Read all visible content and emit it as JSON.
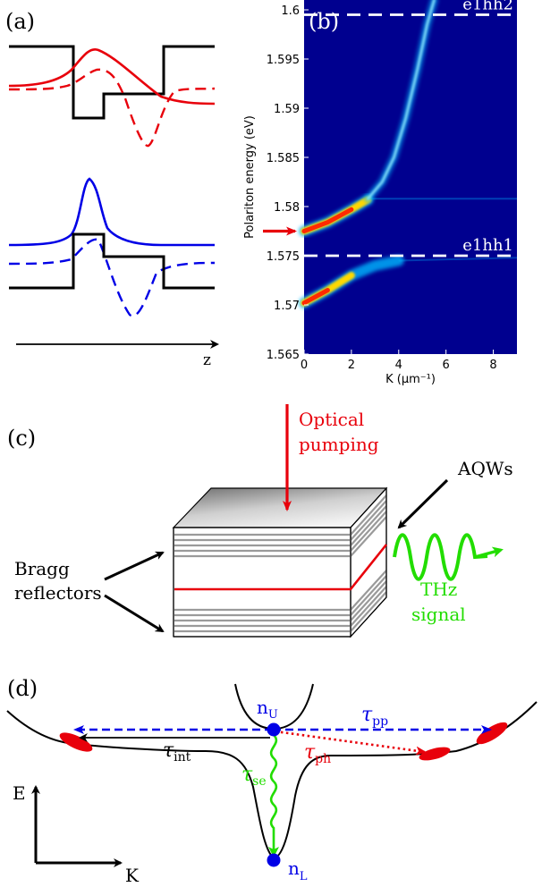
{
  "panels": {
    "a": {
      "label": "(a)",
      "axis_label": "z"
    },
    "b": {
      "label": "(b)"
    },
    "c": {
      "label": "(c)"
    },
    "d": {
      "label": "(d)"
    }
  },
  "chart_data": {
    "type": "heatmap",
    "xlabel": "K (μm⁻¹)",
    "ylabel": "Polariton energy (eV)",
    "xlim": [
      0,
      9
    ],
    "ylim": [
      1.565,
      1.601
    ],
    "x_ticks": [
      "0",
      "2",
      "4",
      "6",
      "8"
    ],
    "y_ticks": [
      "1.565",
      "1.57",
      "1.575",
      "1.58",
      "1.585",
      "1.59",
      "1.595",
      "1.6"
    ],
    "reference_lines": [
      {
        "name": "e1hh1",
        "y": 1.575
      },
      {
        "name": "e1hh2",
        "y": 1.5995
      }
    ],
    "arrow_marker_y": 1.5775,
    "branches": [
      {
        "name": "lower",
        "points": [
          [
            0,
            1.5702
          ],
          [
            1,
            1.5715
          ],
          [
            2,
            1.573
          ],
          [
            3,
            1.574
          ],
          [
            4,
            1.5745
          ]
        ]
      },
      {
        "name": "middle",
        "points": [
          [
            0,
            1.5775
          ],
          [
            1,
            1.5784
          ],
          [
            2,
            1.5797
          ],
          [
            2.7,
            1.5807
          ]
        ]
      },
      {
        "name": "upper",
        "points": [
          [
            2.7,
            1.5808
          ],
          [
            3.3,
            1.5825
          ],
          [
            3.8,
            1.585
          ],
          [
            4.3,
            1.589
          ],
          [
            4.8,
            1.594
          ],
          [
            5.2,
            1.5985
          ],
          [
            5.5,
            1.601
          ]
        ]
      }
    ],
    "colors": {
      "background": "#00008f",
      "hot": "#ff2a00",
      "mid": "#ffd800",
      "edge": "#00b8ff"
    }
  },
  "structure": {
    "pump_label": "Optical pumping",
    "aqw_label": "AQWs",
    "bragg_label": "Bragg reflectors",
    "thz_label": "THz signal"
  },
  "relaxation": {
    "E_axis": "E",
    "K_axis": "K",
    "nU": "n",
    "nU_sub": "U",
    "nL": "n",
    "nL_sub": "L",
    "tau": "τ",
    "tau_pp_sub": "pp",
    "tau_int_sub": "int",
    "tau_ph_sub": "ph",
    "tau_se_sub": "se"
  },
  "colors": {
    "red": "#e8000b",
    "blue": "#0000e6",
    "green": "#22dd00",
    "navy": "#00008f"
  }
}
